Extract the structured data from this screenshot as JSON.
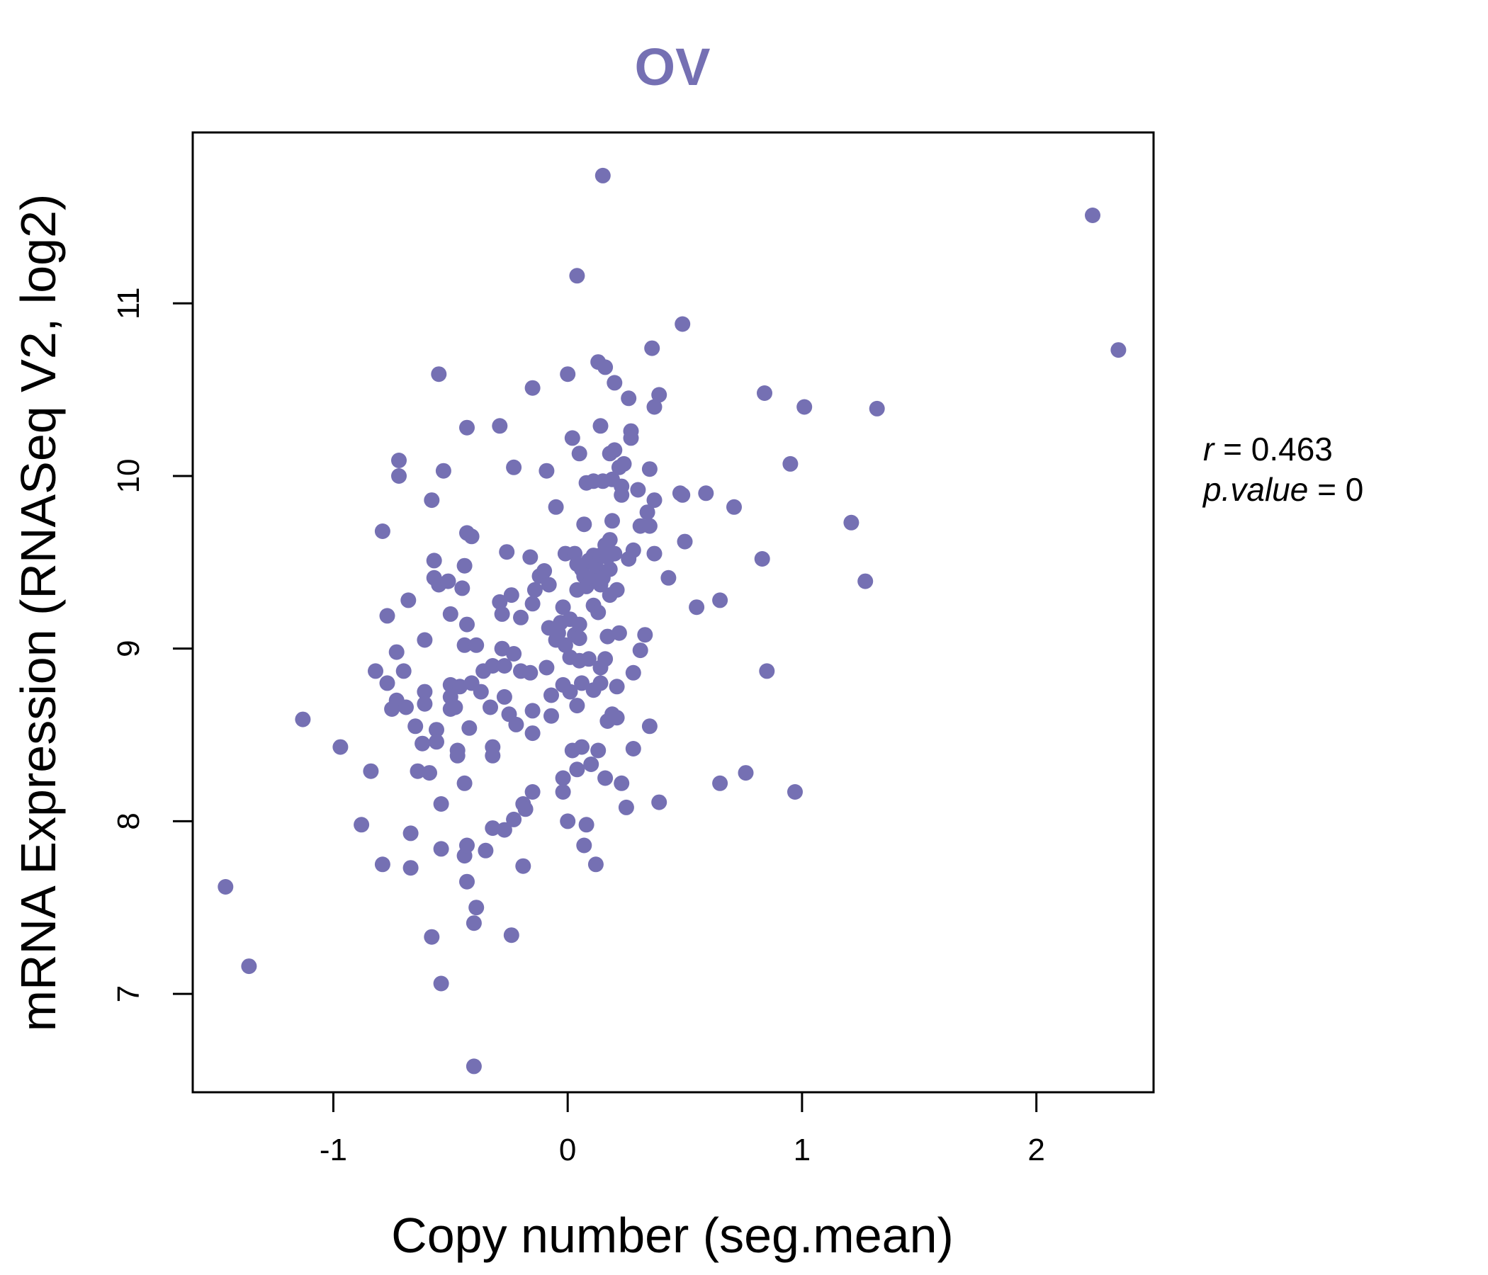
{
  "chart_data": {
    "type": "scatter",
    "title": "OV",
    "xlabel": "Copy number (seg.mean)",
    "ylabel": "mRNA Expression (RNASeq V2, log2)",
    "xlim": [
      -1.6,
      2.5
    ],
    "ylim": [
      6.43,
      11.99
    ],
    "xticks": [
      -1,
      0,
      1,
      2
    ],
    "xtick_labels": [
      "-1",
      "0",
      "1",
      "2"
    ],
    "yticks": [
      7,
      8,
      9,
      10,
      11
    ],
    "ytick_labels": [
      "7",
      "8",
      "9",
      "10",
      "11"
    ],
    "grid": false,
    "legend": "none",
    "point_color": "#7570b3",
    "stats": {
      "r_label": "r",
      "r_value": "0.463",
      "p_label": "p.value",
      "p_value": "0"
    },
    "points": [
      [
        -1.46,
        7.62
      ],
      [
        -1.36,
        7.16
      ],
      [
        -1.13,
        8.59
      ],
      [
        -0.97,
        8.43
      ],
      [
        -0.88,
        7.98
      ],
      [
        -0.84,
        8.29
      ],
      [
        -0.82,
        8.87
      ],
      [
        -0.79,
        7.75
      ],
      [
        -0.79,
        9.68
      ],
      [
        -0.77,
        8.8
      ],
      [
        -0.77,
        9.19
      ],
      [
        -0.75,
        8.65
      ],
      [
        -0.73,
        8.98
      ],
      [
        -0.73,
        8.7
      ],
      [
        -0.72,
        10.09
      ],
      [
        -0.72,
        10.0
      ],
      [
        -0.7,
        8.87
      ],
      [
        -0.69,
        8.66
      ],
      [
        -0.68,
        9.28
      ],
      [
        -0.67,
        7.93
      ],
      [
        -0.67,
        7.73
      ],
      [
        -0.65,
        8.55
      ],
      [
        -0.64,
        8.29
      ],
      [
        -0.62,
        8.45
      ],
      [
        -0.61,
        9.05
      ],
      [
        -0.61,
        8.75
      ],
      [
        -0.61,
        8.68
      ],
      [
        -0.59,
        8.28
      ],
      [
        -0.58,
        9.86
      ],
      [
        -0.58,
        7.33
      ],
      [
        -0.57,
        9.51
      ],
      [
        -0.57,
        9.41
      ],
      [
        -0.56,
        8.53
      ],
      [
        -0.56,
        8.46
      ],
      [
        -0.55,
        10.59
      ],
      [
        -0.55,
        9.37
      ],
      [
        -0.54,
        8.1
      ],
      [
        -0.54,
        7.84
      ],
      [
        -0.54,
        7.06
      ],
      [
        -0.53,
        10.03
      ],
      [
        -0.51,
        9.39
      ],
      [
        -0.5,
        9.2
      ],
      [
        -0.5,
        8.79
      ],
      [
        -0.5,
        8.72
      ],
      [
        -0.5,
        8.65
      ],
      [
        -0.48,
        8.66
      ],
      [
        -0.47,
        8.38
      ],
      [
        -0.47,
        8.41
      ],
      [
        -0.46,
        8.78
      ],
      [
        -0.45,
        9.35
      ],
      [
        -0.44,
        9.48
      ],
      [
        -0.44,
        9.02
      ],
      [
        -0.44,
        8.22
      ],
      [
        -0.44,
        7.8
      ],
      [
        -0.43,
        10.28
      ],
      [
        -0.43,
        9.67
      ],
      [
        -0.43,
        9.14
      ],
      [
        -0.43,
        7.86
      ],
      [
        -0.43,
        7.65
      ],
      [
        -0.42,
        8.54
      ],
      [
        -0.41,
        9.65
      ],
      [
        -0.41,
        8.8
      ],
      [
        -0.4,
        7.41
      ],
      [
        -0.4,
        6.58
      ],
      [
        -0.39,
        9.02
      ],
      [
        -0.39,
        7.5
      ],
      [
        -0.37,
        8.75
      ],
      [
        -0.36,
        8.87
      ],
      [
        -0.35,
        7.83
      ],
      [
        -0.33,
        8.66
      ],
      [
        -0.32,
        8.9
      ],
      [
        -0.32,
        8.43
      ],
      [
        -0.32,
        8.38
      ],
      [
        -0.32,
        7.96
      ],
      [
        -0.29,
        10.29
      ],
      [
        -0.29,
        9.27
      ],
      [
        -0.28,
        9.2
      ],
      [
        -0.28,
        9.0
      ],
      [
        -0.27,
        8.9
      ],
      [
        -0.27,
        8.72
      ],
      [
        -0.27,
        7.95
      ],
      [
        -0.26,
        9.56
      ],
      [
        -0.25,
        8.62
      ],
      [
        -0.24,
        9.31
      ],
      [
        -0.24,
        7.34
      ],
      [
        -0.23,
        10.05
      ],
      [
        -0.23,
        8.97
      ],
      [
        -0.23,
        8.01
      ],
      [
        -0.22,
        8.56
      ],
      [
        -0.2,
        9.18
      ],
      [
        -0.2,
        8.87
      ],
      [
        -0.19,
        8.1
      ],
      [
        -0.19,
        7.74
      ],
      [
        -0.18,
        8.07
      ],
      [
        -0.16,
        9.53
      ],
      [
        -0.16,
        8.86
      ],
      [
        -0.15,
        10.51
      ],
      [
        -0.15,
        9.26
      ],
      [
        -0.15,
        8.64
      ],
      [
        -0.15,
        8.17
      ],
      [
        -0.15,
        8.51
      ],
      [
        -0.14,
        9.34
      ],
      [
        -0.12,
        9.42
      ],
      [
        -0.1,
        9.45
      ],
      [
        -0.09,
        10.03
      ],
      [
        -0.09,
        8.89
      ],
      [
        -0.08,
        9.37
      ],
      [
        -0.08,
        9.12
      ],
      [
        -0.07,
        8.73
      ],
      [
        -0.07,
        8.61
      ],
      [
        -0.05,
        9.82
      ],
      [
        -0.05,
        9.05
      ],
      [
        -0.04,
        9.09
      ],
      [
        -0.03,
        9.15
      ],
      [
        -0.02,
        9.24
      ],
      [
        -0.02,
        8.79
      ],
      [
        -0.02,
        8.25
      ],
      [
        -0.02,
        8.17
      ],
      [
        -0.01,
        9.02
      ],
      [
        -0.01,
        9.55
      ],
      [
        0.0,
        10.59
      ],
      [
        0.0,
        8.0
      ],
      [
        0.01,
        9.17
      ],
      [
        0.01,
        8.75
      ],
      [
        0.01,
        8.95
      ],
      [
        0.02,
        10.22
      ],
      [
        0.02,
        8.41
      ],
      [
        0.03,
        9.55
      ],
      [
        0.03,
        9.08
      ],
      [
        0.04,
        9.49
      ],
      [
        0.04,
        9.34
      ],
      [
        0.04,
        8.67
      ],
      [
        0.04,
        8.3
      ],
      [
        0.04,
        11.16
      ],
      [
        0.05,
        10.13
      ],
      [
        0.05,
        9.14
      ],
      [
        0.05,
        9.06
      ],
      [
        0.05,
        8.93
      ],
      [
        0.06,
        9.46
      ],
      [
        0.06,
        8.8
      ],
      [
        0.06,
        8.43
      ],
      [
        0.07,
        9.72
      ],
      [
        0.07,
        9.42
      ],
      [
        0.07,
        7.86
      ],
      [
        0.08,
        9.96
      ],
      [
        0.08,
        9.36
      ],
      [
        0.08,
        7.98
      ],
      [
        0.09,
        9.51
      ],
      [
        0.09,
        8.94
      ],
      [
        0.1,
        9.41
      ],
      [
        0.1,
        8.33
      ],
      [
        0.11,
        9.97
      ],
      [
        0.11,
        9.54
      ],
      [
        0.11,
        9.25
      ],
      [
        0.11,
        8.76
      ],
      [
        0.12,
        9.48
      ],
      [
        0.12,
        7.75
      ],
      [
        0.13,
        10.66
      ],
      [
        0.13,
        9.21
      ],
      [
        0.13,
        8.41
      ],
      [
        0.14,
        10.29
      ],
      [
        0.14,
        9.54
      ],
      [
        0.14,
        9.37
      ],
      [
        0.14,
        8.89
      ],
      [
        0.14,
        8.8
      ],
      [
        0.15,
        9.97
      ],
      [
        0.15,
        11.74
      ],
      [
        0.15,
        9.41
      ],
      [
        0.16,
        10.63
      ],
      [
        0.16,
        9.6
      ],
      [
        0.16,
        8.94
      ],
      [
        0.16,
        8.25
      ],
      [
        0.17,
        9.53
      ],
      [
        0.17,
        9.07
      ],
      [
        0.17,
        8.58
      ],
      [
        0.18,
        9.31
      ],
      [
        0.18,
        10.13
      ],
      [
        0.18,
        9.63
      ],
      [
        0.18,
        9.46
      ],
      [
        0.19,
        9.74
      ],
      [
        0.19,
        9.98
      ],
      [
        0.19,
        8.62
      ],
      [
        0.2,
        10.54
      ],
      [
        0.2,
        10.15
      ],
      [
        0.2,
        9.55
      ],
      [
        0.21,
        9.34
      ],
      [
        0.21,
        8.78
      ],
      [
        0.21,
        8.6
      ],
      [
        0.22,
        10.05
      ],
      [
        0.22,
        9.09
      ],
      [
        0.23,
        9.94
      ],
      [
        0.23,
        9.89
      ],
      [
        0.23,
        8.22
      ],
      [
        0.24,
        10.07
      ],
      [
        0.25,
        8.08
      ],
      [
        0.26,
        10.45
      ],
      [
        0.26,
        9.52
      ],
      [
        0.27,
        10.26
      ],
      [
        0.27,
        10.22
      ],
      [
        0.28,
        9.57
      ],
      [
        0.28,
        8.86
      ],
      [
        0.28,
        8.42
      ],
      [
        0.3,
        9.92
      ],
      [
        0.31,
        9.71
      ],
      [
        0.31,
        8.99
      ],
      [
        0.33,
        9.08
      ],
      [
        0.34,
        9.79
      ],
      [
        0.35,
        10.04
      ],
      [
        0.35,
        9.71
      ],
      [
        0.35,
        8.55
      ],
      [
        0.36,
        10.74
      ],
      [
        0.37,
        10.4
      ],
      [
        0.37,
        9.86
      ],
      [
        0.37,
        9.55
      ],
      [
        0.39,
        10.47
      ],
      [
        0.39,
        8.11
      ],
      [
        0.43,
        9.41
      ],
      [
        0.48,
        9.9
      ],
      [
        0.49,
        10.88
      ],
      [
        0.49,
        9.89
      ],
      [
        0.5,
        9.62
      ],
      [
        0.55,
        9.24
      ],
      [
        0.59,
        9.9
      ],
      [
        0.65,
        9.28
      ],
      [
        0.65,
        8.22
      ],
      [
        0.71,
        9.82
      ],
      [
        0.76,
        8.28
      ],
      [
        0.83,
        9.52
      ],
      [
        0.84,
        10.48
      ],
      [
        0.85,
        8.87
      ],
      [
        0.95,
        10.07
      ],
      [
        0.97,
        8.17
      ],
      [
        1.01,
        10.4
      ],
      [
        1.21,
        9.73
      ],
      [
        1.27,
        9.39
      ],
      [
        1.32,
        10.39
      ],
      [
        2.24,
        11.51
      ],
      [
        2.35,
        10.73
      ]
    ]
  }
}
